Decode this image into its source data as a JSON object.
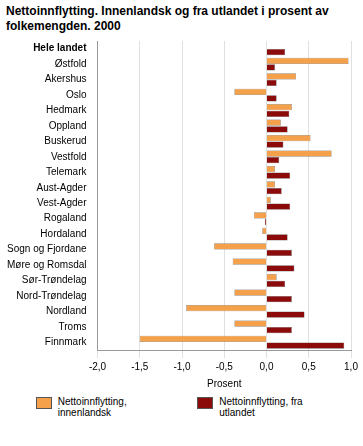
{
  "chart_data": {
    "type": "bar",
    "orientation": "horizontal",
    "title": "Nettoinnflytting. Innenlandsk og fra utlandet i prosent av folkemengden. 2000",
    "xlabel": "Prosent",
    "categories": [
      "Hele landet",
      "Østfold",
      "Akershus",
      "Oslo",
      "Hedmark",
      "Oppland",
      "Buskerud",
      "Vestfold",
      "Telemark",
      "Aust-Agder",
      "Vest-Agder",
      "Rogaland",
      "Hordaland",
      "Sogn og Fjordane",
      "Møre og Romsdal",
      "Sør-Trøndelag",
      "Nord-Trøndelag",
      "Nordland",
      "Troms",
      "Finnmark"
    ],
    "series": [
      {
        "name": "Nettoinnflytting, innenlandsk",
        "color": "#f5a04a",
        "values": [
          0,
          0.97,
          0.35,
          -0.38,
          0.3,
          0.17,
          0.52,
          0.77,
          0.1,
          0.1,
          0.05,
          -0.15,
          -0.05,
          -0.62,
          -0.4,
          0.12,
          -0.38,
          -0.95,
          -0.38,
          -1.5
        ]
      },
      {
        "name": "Nettoinnflytting, fra utlandet",
        "color": "#8b0a0a",
        "values": [
          0.22,
          0.1,
          0.12,
          0.12,
          0.27,
          0.25,
          0.2,
          0.15,
          0.28,
          0.18,
          0.28,
          -0.02,
          0.25,
          0.3,
          0.33,
          0.22,
          0.3,
          0.45,
          0.3,
          0.92
        ]
      }
    ],
    "xlim": [
      -2,
      1
    ],
    "xticks": [
      {
        "value": -2,
        "label": "-2,0"
      },
      {
        "value": -1.5,
        "label": "-1,5"
      },
      {
        "value": -1,
        "label": "-1,0"
      },
      {
        "value": -0.5,
        "label": "-0,5"
      },
      {
        "value": 0,
        "label": "0,0"
      },
      {
        "value": 0.5,
        "label": "0,5"
      },
      {
        "value": 1,
        "label": "1,0"
      }
    ],
    "grid": true,
    "legend": "bottom"
  }
}
